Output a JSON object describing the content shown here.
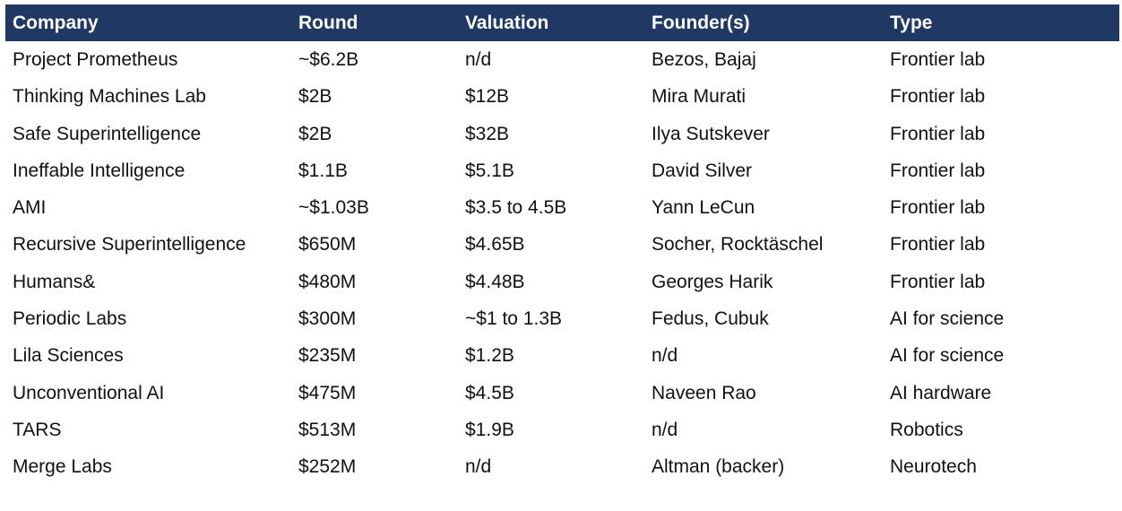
{
  "table": {
    "header_color": "#1f3864",
    "columns": [
      "Company",
      "Round",
      "Valuation",
      "Founder(s)",
      "Type"
    ],
    "rows": [
      [
        "Project Prometheus",
        "~$6.2B",
        "n/d",
        "Bezos, Bajaj",
        "Frontier lab"
      ],
      [
        "Thinking Machines Lab",
        "$2B",
        "$12B",
        "Mira Murati",
        "Frontier lab"
      ],
      [
        "Safe Superintelligence",
        "$2B",
        "$32B",
        "Ilya Sutskever",
        "Frontier lab"
      ],
      [
        "Ineffable Intelligence",
        "$1.1B",
        "$5.1B",
        "David Silver",
        "Frontier lab"
      ],
      [
        "AMI",
        "~$1.03B",
        "$3.5 to 4.5B",
        "Yann LeCun",
        "Frontier lab"
      ],
      [
        "Recursive Superintelligence",
        "$650M",
        "$4.65B",
        "Socher, Rocktäschel",
        "Frontier lab"
      ],
      [
        "Humans&",
        "$480M",
        "$4.48B",
        "Georges Harik",
        "Frontier lab"
      ],
      [
        "Periodic Labs",
        "$300M",
        "~$1 to 1.3B",
        "Fedus, Cubuk",
        "AI for science"
      ],
      [
        "Lila Sciences",
        "$235M",
        "$1.2B",
        "n/d",
        "AI for science"
      ],
      [
        "Unconventional AI",
        "$475M",
        "$4.5B",
        "Naveen Rao",
        "AI hardware"
      ],
      [
        "TARS",
        "$513M",
        "$1.9B",
        "n/d",
        "Robotics"
      ],
      [
        "Merge Labs",
        "$252M",
        "n/d",
        "Altman (backer)",
        "Neurotech"
      ]
    ]
  }
}
